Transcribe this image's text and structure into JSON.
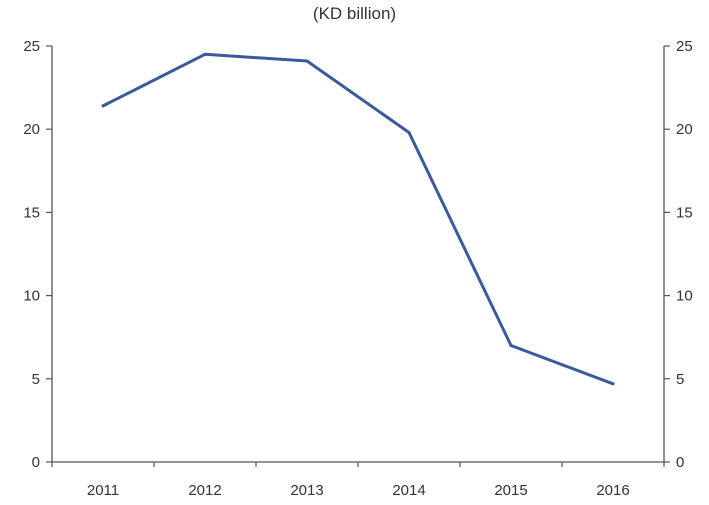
{
  "chart_data": {
    "type": "line",
    "subtitle": "(KD billion)",
    "categories": [
      "2011",
      "2012",
      "2013",
      "2014",
      "2015",
      "2016"
    ],
    "series": [
      {
        "values": [
          21.4,
          24.5,
          24.1,
          19.8,
          7.0,
          4.7
        ]
      }
    ],
    "ylim": [
      0,
      25
    ],
    "yticks": [
      "0",
      "5",
      "10",
      "15",
      "20",
      "25"
    ],
    "y_axis_sides": "left-and-right",
    "grid": false,
    "legend": "none",
    "line_color": "#3a5a9c",
    "axis_color": "#555555",
    "text_color": "#333333"
  }
}
